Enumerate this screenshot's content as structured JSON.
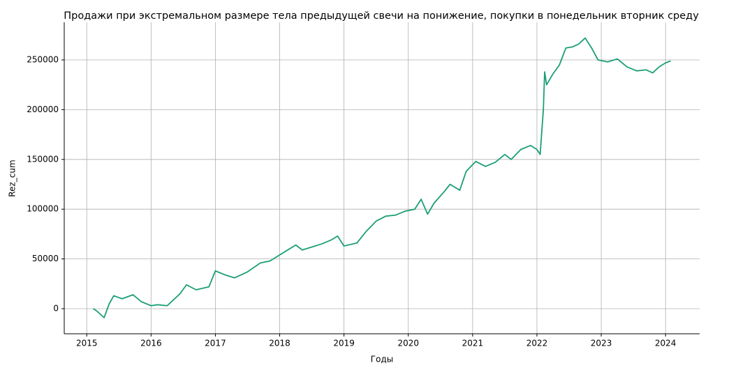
{
  "chart_data": {
    "type": "line",
    "title": "Продажи при экстремальном размере тела предыдущей свечи на понижение, покупки в понедельник вторник среду",
    "x_label": "Годы",
    "y_label": "Rez_cum",
    "x": [
      2015.1,
      2015.15,
      2015.27,
      2015.35,
      2015.42,
      2015.55,
      2015.72,
      2015.85,
      2016.0,
      2016.1,
      2016.25,
      2016.35,
      2016.45,
      2016.55,
      2016.7,
      2016.9,
      2017.0,
      2017.15,
      2017.3,
      2017.5,
      2017.7,
      2017.85,
      2018.0,
      2018.15,
      2018.25,
      2018.35,
      2018.5,
      2018.65,
      2018.8,
      2018.9,
      2019.0,
      2019.2,
      2019.35,
      2019.5,
      2019.65,
      2019.8,
      2019.95,
      2020.1,
      2020.2,
      2020.3,
      2020.4,
      2020.55,
      2020.65,
      2020.8,
      2020.9,
      2021.05,
      2021.2,
      2021.35,
      2021.5,
      2021.6,
      2021.75,
      2021.9,
      2022.0,
      2022.05,
      2022.1,
      2022.12,
      2022.15,
      2022.25,
      2022.35,
      2022.45,
      2022.55,
      2022.65,
      2022.75,
      2022.85,
      2022.95,
      2023.1,
      2023.25,
      2023.4,
      2023.55,
      2023.7,
      2023.8,
      2023.9,
      2024.0,
      2024.08
    ],
    "series": [
      {
        "name": "Rez_cum",
        "color": "#1b9e77",
        "values": [
          0,
          -2000,
          -9000,
          5000,
          13000,
          10000,
          14000,
          7000,
          3000,
          4000,
          3000,
          9000,
          15000,
          24000,
          19000,
          22000,
          38000,
          34000,
          31000,
          37000,
          46000,
          48000,
          54000,
          60000,
          64000,
          59000,
          62000,
          65000,
          69000,
          73000,
          63000,
          66000,
          78000,
          88000,
          93000,
          94000,
          98000,
          100000,
          110000,
          95000,
          106000,
          117000,
          125000,
          119000,
          138000,
          148000,
          143000,
          147000,
          155000,
          150000,
          160000,
          164000,
          160000,
          155000,
          200000,
          238000,
          225000,
          236000,
          245000,
          262000,
          263000,
          266000,
          272000,
          262000,
          250000,
          248000,
          251000,
          243000,
          239000,
          240000,
          237000,
          243000,
          247000,
          249000
        ]
      }
    ],
    "xlim": [
      2014.65,
      2024.53
    ],
    "ylim": [
      -25200,
      287800
    ],
    "xticks": [
      2015,
      2016,
      2017,
      2018,
      2019,
      2020,
      2021,
      2022,
      2023,
      2024
    ],
    "yticks": [
      0,
      50000,
      100000,
      150000,
      200000,
      250000
    ],
    "grid": true
  }
}
